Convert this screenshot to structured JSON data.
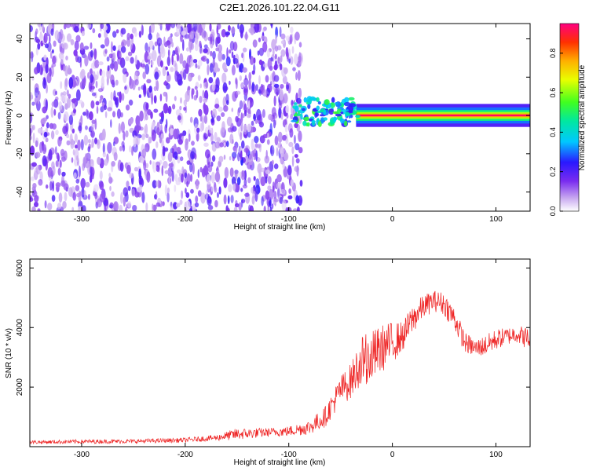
{
  "title": "C2E1.2026.101.22.04.G11",
  "colors": {
    "snr_line": "#ee2222",
    "axis": "#000000",
    "background": "#ffffff"
  },
  "chart_data": [
    {
      "type": "heatmap",
      "panel": "top",
      "xlabel": "Height of straight line (km)",
      "ylabel": "Frequency (Hz)",
      "xlim": [
        -350,
        133
      ],
      "ylim": [
        -50,
        48
      ],
      "xticks": [
        -300,
        -200,
        -100,
        0,
        100
      ],
      "yticks": [
        -40,
        -20,
        0,
        20,
        40
      ],
      "colorbar": {
        "label": "Normalized spectral amplitude",
        "range": [
          0.0,
          0.95
        ],
        "ticks": [
          0.0,
          0.2,
          0.4,
          0.6,
          0.8
        ],
        "colormap": "rainbow"
      },
      "description": "Broadband noise (amplitude ~0.1-0.25) from -350 to -90 km; narrow band near 0 Hz from -95 km onward, amplitude rising to ~0.9 after -40 km"
    },
    {
      "type": "line",
      "panel": "bottom",
      "xlabel": "Height of straight line (km)",
      "ylabel": "SNR (10 * v/v)",
      "xlim": [
        -350,
        133
      ],
      "ylim": [
        0,
        6300
      ],
      "xticks": [
        -300,
        -200,
        -100,
        0,
        100
      ],
      "yticks": [
        2000,
        4000,
        6000
      ],
      "series": [
        {
          "name": "SNR",
          "x": [
            -350,
            -300,
            -250,
            -200,
            -170,
            -150,
            -120,
            -100,
            -80,
            -65,
            -50,
            -40,
            -30,
            -20,
            -10,
            0,
            10,
            20,
            30,
            40,
            50,
            60,
            70,
            80,
            90,
            100,
            110,
            120,
            133
          ],
          "y": [
            150,
            170,
            180,
            220,
            300,
            420,
            480,
            520,
            650,
            1000,
            1900,
            2200,
            2900,
            3000,
            3300,
            3500,
            3700,
            4300,
            4700,
            4900,
            4800,
            4300,
            3500,
            3300,
            3400,
            3600,
            3700,
            3800,
            3600
          ],
          "spread": [
            60,
            70,
            70,
            80,
            100,
            200,
            150,
            170,
            250,
            350,
            500,
            600,
            800,
            900,
            800,
            700,
            500,
            500,
            400,
            350,
            400,
            400,
            350,
            300,
            350,
            350,
            300,
            300,
            400
          ]
        }
      ]
    }
  ]
}
